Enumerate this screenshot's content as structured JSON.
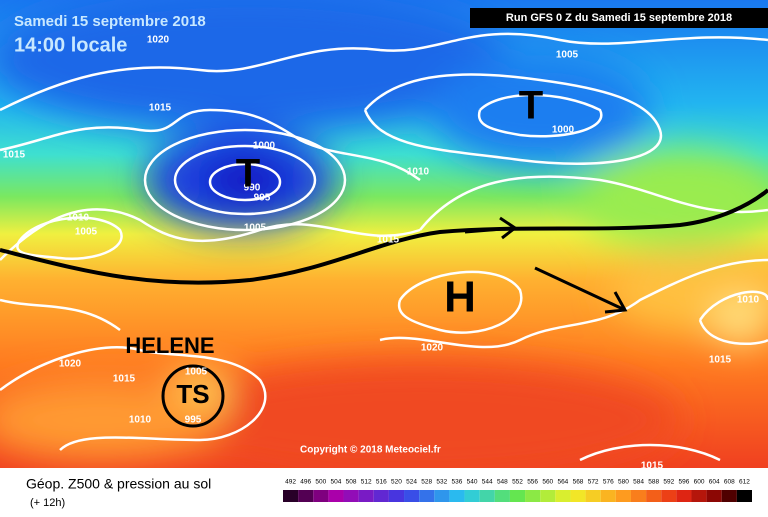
{
  "header": {
    "date": "Samedi 15 septembre 2018",
    "time": "14:00 locale",
    "run": "Run GFS 0 Z du Samedi 15 septembre 2018"
  },
  "copyright": "Copyright © 2018 Meteociel.fr",
  "footer": {
    "title": "Géop. Z500 & pression au sol",
    "lead": "(+ 12h)"
  },
  "scale": [
    492,
    496,
    500,
    504,
    508,
    512,
    516,
    520,
    524,
    528,
    532,
    536,
    540,
    544,
    548,
    552,
    556,
    560,
    564,
    568,
    572,
    576,
    580,
    584,
    588,
    592,
    596,
    600,
    604,
    608,
    612
  ],
  "systems": [
    {
      "label": "T"
    },
    {
      "label": "T"
    },
    {
      "label": "H"
    },
    {
      "label": "HELENE"
    },
    {
      "label": "TS"
    }
  ],
  "isobars": [
    1020,
    1015,
    1000,
    1015,
    1010,
    990,
    995,
    1005,
    1010,
    1005,
    1015,
    1005,
    1000,
    1020,
    1020,
    1015,
    1010,
    1010,
    1015,
    1015,
    1005,
    995
  ]
}
